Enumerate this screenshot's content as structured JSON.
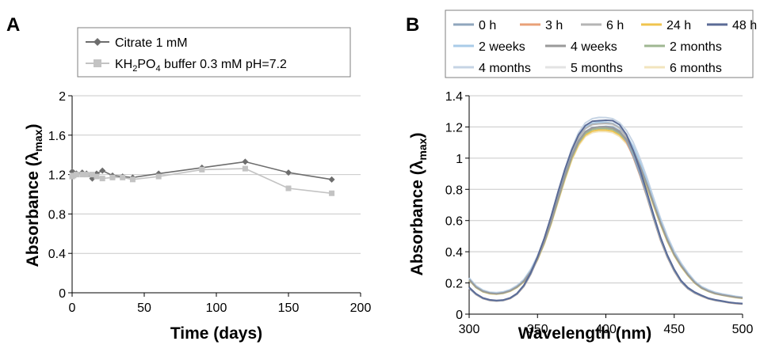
{
  "chart_data": [
    {
      "panel": "A",
      "type": "line",
      "xlabel": "Time (days)",
      "ylabel": {
        "text": "Absorbance (λ",
        "sub": "max",
        "close": ")"
      },
      "xlim": [
        0,
        200
      ],
      "ylim": [
        0,
        2
      ],
      "x_ticks": [
        "0",
        "50",
        "100",
        "150",
        "200"
      ],
      "y_ticks": [
        "0",
        "0.4",
        "0.8",
        "1.2",
        "1.6",
        "2"
      ],
      "grid": "horizontal",
      "legend_position": "top",
      "series": [
        {
          "name": {
            "pre": "Citrate 1 mM",
            "sub": "",
            "post": ""
          },
          "color": "#6d6d6d",
          "marker": "diamond",
          "x": [
            0,
            1,
            3,
            7,
            10,
            14,
            17,
            21,
            28,
            35,
            42,
            60,
            90,
            120,
            150,
            180
          ],
          "y": [
            1.23,
            1.22,
            1.21,
            1.22,
            1.21,
            1.16,
            1.21,
            1.24,
            1.19,
            1.18,
            1.17,
            1.21,
            1.27,
            1.33,
            1.22,
            1.15
          ]
        },
        {
          "name": {
            "pre": "KH",
            "sub": "2",
            "post": "PO",
            "sub2": "4",
            "post2": " buffer 0.3 mM pH=7.2"
          },
          "color": "#c3c3c3",
          "marker": "square",
          "x": [
            0,
            1,
            3,
            7,
            10,
            14,
            17,
            21,
            28,
            35,
            42,
            60,
            90,
            120,
            150,
            180
          ],
          "y": [
            1.18,
            1.19,
            1.2,
            1.2,
            1.2,
            1.2,
            1.18,
            1.16,
            1.17,
            1.17,
            1.15,
            1.18,
            1.25,
            1.26,
            1.06,
            1.01
          ]
        }
      ]
    },
    {
      "panel": "B",
      "type": "line",
      "xlabel": "Wavelength (nm)",
      "ylabel": {
        "text": "Absorbance (λ",
        "sub": "max",
        "close": ")"
      },
      "xlim": [
        300,
        500
      ],
      "ylim": [
        0,
        1.4
      ],
      "x_ticks": [
        "300",
        "350",
        "400",
        "450",
        "500"
      ],
      "y_ticks": [
        "0",
        "0.2",
        "0.4",
        "0.6",
        "0.8",
        "1",
        "1.2",
        "1.4"
      ],
      "grid": "horizontal",
      "legend_position": "top",
      "x": [
        300,
        305,
        310,
        315,
        320,
        325,
        330,
        335,
        340,
        345,
        350,
        355,
        360,
        365,
        370,
        375,
        380,
        385,
        390,
        395,
        400,
        405,
        410,
        415,
        420,
        425,
        430,
        435,
        440,
        445,
        450,
        455,
        460,
        465,
        470,
        475,
        480,
        485,
        490,
        495,
        500
      ],
      "series": [
        {
          "name": "0 h",
          "color": "#8fa6bd",
          "peak": 1.2,
          "y": [
            0.167,
            0.127,
            0.101,
            0.089,
            0.085,
            0.088,
            0.101,
            0.129,
            0.179,
            0.256,
            0.356,
            0.472,
            0.608,
            0.757,
            0.898,
            1.018,
            1.112,
            1.17,
            1.196,
            1.2,
            1.203,
            1.2,
            1.175,
            1.115,
            1.015,
            0.895,
            0.757,
            0.613,
            0.477,
            0.367,
            0.277,
            0.208,
            0.164,
            0.136,
            0.116,
            0.099,
            0.089,
            0.081,
            0.074,
            0.069,
            0.066
          ]
        },
        {
          "name": "3 h",
          "color": "#e9a178",
          "peak": 1.19,
          "y": [
            0.166,
            0.126,
            0.1,
            0.088,
            0.084,
            0.087,
            0.1,
            0.128,
            0.177,
            0.254,
            0.353,
            0.468,
            0.603,
            0.751,
            0.891,
            1.01,
            1.103,
            1.161,
            1.186,
            1.19,
            1.193,
            1.19,
            1.165,
            1.105,
            1.007,
            0.887,
            0.751,
            0.608,
            0.473,
            0.364,
            0.275,
            0.206,
            0.163,
            0.135,
            0.115,
            0.098,
            0.088,
            0.081,
            0.073,
            0.068,
            0.065
          ]
        },
        {
          "name": "6 h",
          "color": "#b5b5b5",
          "peak": 1.22,
          "y": [
            0.17,
            0.129,
            0.103,
            0.09,
            0.086,
            0.09,
            0.103,
            0.131,
            0.182,
            0.26,
            0.362,
            0.48,
            0.618,
            0.769,
            0.913,
            1.035,
            1.13,
            1.19,
            1.216,
            1.22,
            1.223,
            1.22,
            1.194,
            1.133,
            1.032,
            0.91,
            0.77,
            0.623,
            0.485,
            0.373,
            0.282,
            0.211,
            0.167,
            0.138,
            0.118,
            0.101,
            0.09,
            0.083,
            0.075,
            0.07,
            0.067
          ]
        },
        {
          "name": "24 h",
          "color": "#f0c44e",
          "peak": 1.18,
          "y": [
            0.219,
            0.171,
            0.144,
            0.132,
            0.129,
            0.134,
            0.148,
            0.172,
            0.208,
            0.268,
            0.35,
            0.455,
            0.582,
            0.725,
            0.867,
            0.994,
            1.089,
            1.148,
            1.173,
            1.181,
            1.18,
            1.173,
            1.149,
            1.103,
            1.032,
            0.935,
            0.82,
            0.696,
            0.576,
            0.468,
            0.377,
            0.307,
            0.249,
            0.2,
            0.166,
            0.146,
            0.131,
            0.122,
            0.114,
            0.107,
            0.102
          ]
        },
        {
          "name": "48 h",
          "color": "#5b6b96",
          "peak": 1.24,
          "y": [
            0.172,
            0.131,
            0.104,
            0.092,
            0.088,
            0.091,
            0.104,
            0.133,
            0.185,
            0.264,
            0.368,
            0.488,
            0.628,
            0.782,
            0.928,
            1.052,
            1.149,
            1.209,
            1.236,
            1.24,
            1.243,
            1.24,
            1.214,
            1.152,
            1.049,
            0.925,
            0.782,
            0.633,
            0.493,
            0.379,
            0.287,
            0.215,
            0.17,
            0.141,
            0.12,
            0.102,
            0.092,
            0.084,
            0.076,
            0.071,
            0.068
          ]
        },
        {
          "name": "2 weeks",
          "color": "#a9cbe8",
          "peak": 1.23,
          "y": [
            0.228,
            0.178,
            0.15,
            0.138,
            0.134,
            0.14,
            0.154,
            0.179,
            0.217,
            0.279,
            0.365,
            0.474,
            0.607,
            0.756,
            0.904,
            1.036,
            1.135,
            1.197,
            1.223,
            1.231,
            1.23,
            1.223,
            1.197,
            1.149,
            1.075,
            0.975,
            0.855,
            0.725,
            0.601,
            0.488,
            0.393,
            0.32,
            0.259,
            0.208,
            0.173,
            0.152,
            0.137,
            0.127,
            0.119,
            0.112,
            0.106
          ]
        },
        {
          "name": "4 weeks",
          "color": "#9a9a9a",
          "peak": 1.2,
          "y": [
            0.222,
            0.174,
            0.147,
            0.135,
            0.131,
            0.137,
            0.15,
            0.175,
            0.212,
            0.272,
            0.356,
            0.463,
            0.592,
            0.737,
            0.882,
            1.01,
            1.107,
            1.168,
            1.193,
            1.201,
            1.2,
            1.193,
            1.168,
            1.121,
            1.049,
            0.951,
            0.834,
            0.708,
            0.586,
            0.476,
            0.383,
            0.312,
            0.253,
            0.203,
            0.169,
            0.148,
            0.133,
            0.124,
            0.116,
            0.109,
            0.104
          ]
        },
        {
          "name": "2 months",
          "color": "#9fb792",
          "peak": 1.19,
          "y": [
            0.22,
            0.172,
            0.145,
            0.134,
            0.13,
            0.135,
            0.149,
            0.173,
            0.21,
            0.27,
            0.353,
            0.459,
            0.587,
            0.731,
            0.874,
            1.002,
            1.098,
            1.158,
            1.183,
            1.191,
            1.19,
            1.183,
            1.158,
            1.112,
            1.04,
            0.943,
            0.827,
            0.702,
            0.581,
            0.472,
            0.38,
            0.31,
            0.251,
            0.202,
            0.167,
            0.147,
            0.132,
            0.123,
            0.115,
            0.108,
            0.103
          ]
        },
        {
          "name": "4 months",
          "color": "#c6d4e4",
          "peak": 1.26,
          "y": [
            0.233,
            0.183,
            0.154,
            0.141,
            0.138,
            0.143,
            0.158,
            0.184,
            0.222,
            0.286,
            0.374,
            0.486,
            0.622,
            0.774,
            0.926,
            1.061,
            1.163,
            1.226,
            1.253,
            1.261,
            1.26,
            1.253,
            1.227,
            1.178,
            1.101,
            0.998,
            0.876,
            0.743,
            0.615,
            0.5,
            0.403,
            0.328,
            0.266,
            0.213,
            0.177,
            0.156,
            0.14,
            0.13,
            0.122,
            0.114,
            0.109
          ]
        },
        {
          "name": "5 months",
          "color": "#e3e3e3",
          "peak": 1.22,
          "y": [
            0.226,
            0.177,
            0.149,
            0.137,
            0.133,
            0.139,
            0.153,
            0.178,
            0.215,
            0.277,
            0.362,
            0.471,
            0.602,
            0.75,
            0.896,
            1.027,
            1.126,
            1.187,
            1.213,
            1.221,
            1.22,
            1.213,
            1.188,
            1.14,
            1.066,
            0.967,
            0.848,
            0.719,
            0.596,
            0.484,
            0.39,
            0.317,
            0.257,
            0.206,
            0.172,
            0.151,
            0.136,
            0.126,
            0.118,
            0.111,
            0.106
          ]
        },
        {
          "name": "6 months",
          "color": "#f2e4bd",
          "peak": 1.17,
          "y": [
            0.217,
            0.17,
            0.143,
            0.131,
            0.128,
            0.133,
            0.146,
            0.17,
            0.207,
            0.266,
            0.347,
            0.451,
            0.577,
            0.719,
            0.859,
            0.985,
            1.079,
            1.139,
            1.163,
            1.171,
            1.17,
            1.163,
            1.139,
            1.093,
            1.022,
            0.927,
            0.813,
            0.69,
            0.571,
            0.464,
            0.374,
            0.304,
            0.246,
            0.198,
            0.165,
            0.145,
            0.13,
            0.121,
            0.113,
            0.106,
            0.101
          ]
        }
      ]
    }
  ]
}
